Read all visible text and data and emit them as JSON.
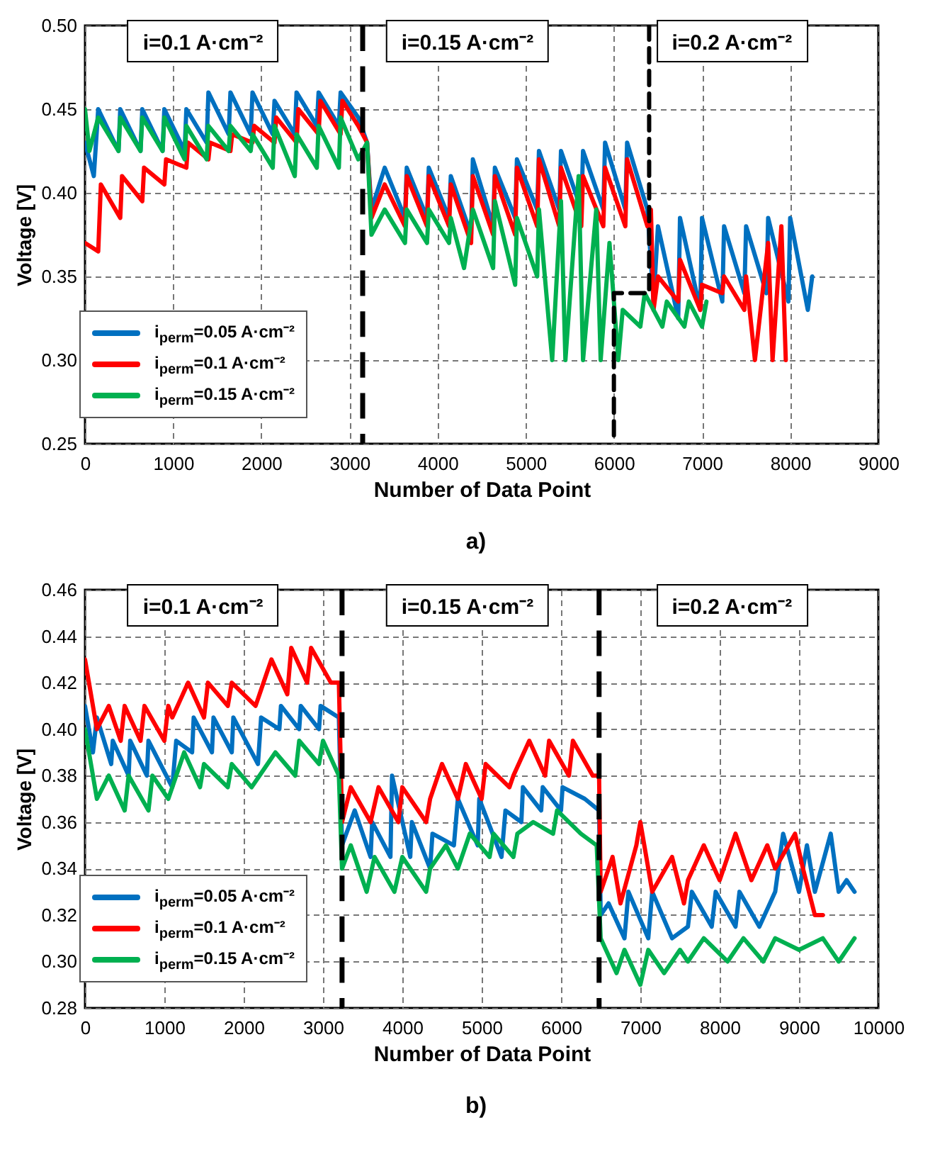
{
  "chart_data": [
    {
      "type": "line",
      "xlabel": "Number of Data Point",
      "ylabel": "Voltage [V]",
      "xlim": [
        0,
        9000
      ],
      "xticks": [
        0,
        1000,
        2000,
        3000,
        4000,
        5000,
        6000,
        7000,
        8000,
        9000
      ],
      "ylim": [
        0.25,
        0.5
      ],
      "yticks": [
        {
          "value": 0.25,
          "label": "0.25"
        },
        {
          "value": 0.3,
          "label": "0.30"
        },
        {
          "value": 0.35,
          "label": "0.35"
        },
        {
          "value": 0.4,
          "label": "0.40"
        },
        {
          "value": 0.45,
          "label": "0.45"
        },
        {
          "value": 0.5,
          "label": "0.50"
        }
      ],
      "grid": true,
      "legend": "bottom left",
      "annotations": [
        "i=0.1 A·cm⁻²",
        "i=0.15 A·cm⁻²",
        "i=0.2 A·cm⁻²",
        "a)"
      ],
      "ref_lines": [
        {
          "axis": "x",
          "value": 3150,
          "color": "#000000",
          "line_style": "dashed"
        }
      ],
      "series": [
        {
          "name": "i$_{perm}$=0.05 A·cm⁻²",
          "color": "#0070c0",
          "x": [
            0,
            100,
            150,
            380,
            400,
            630,
            650,
            880,
            900,
            1130,
            1150,
            1380,
            1400,
            1630,
            1650,
            1880,
            1900,
            2130,
            2150,
            2380,
            2400,
            2630,
            2650,
            2880,
            2900,
            3100,
            3200,
            3250,
            3400,
            3630,
            3650,
            3880,
            3900,
            4130,
            4150,
            4380,
            4400,
            4630,
            4650,
            4880,
            4900,
            5130,
            5150,
            5380,
            5400,
            5630,
            5650,
            5880,
            5900,
            6130,
            6150,
            6380,
            6450,
            6500,
            6730,
            6750,
            6980,
            7000,
            7230,
            7250,
            7480,
            7500,
            7730,
            7750,
            7980,
            8000,
            8200,
            8250
          ],
          "values": [
            0.43,
            0.41,
            0.45,
            0.425,
            0.45,
            0.425,
            0.45,
            0.425,
            0.45,
            0.425,
            0.45,
            0.43,
            0.46,
            0.435,
            0.46,
            0.435,
            0.46,
            0.435,
            0.455,
            0.435,
            0.46,
            0.44,
            0.46,
            0.44,
            0.46,
            0.445,
            0.43,
            0.39,
            0.415,
            0.385,
            0.415,
            0.385,
            0.415,
            0.385,
            0.41,
            0.375,
            0.42,
            0.38,
            0.415,
            0.385,
            0.42,
            0.39,
            0.425,
            0.39,
            0.425,
            0.39,
            0.425,
            0.39,
            0.43,
            0.39,
            0.43,
            0.39,
            0.335,
            0.38,
            0.325,
            0.385,
            0.33,
            0.385,
            0.335,
            0.38,
            0.34,
            0.38,
            0.34,
            0.385,
            0.335,
            0.385,
            0.33,
            0.35
          ]
        },
        {
          "name": "i$_{perm}$=0.1 A·cm⁻²",
          "color": "#ff0000",
          "x": [
            0,
            150,
            180,
            400,
            420,
            650,
            670,
            900,
            920,
            1150,
            1170,
            1400,
            1420,
            1650,
            1670,
            1900,
            1920,
            2150,
            2170,
            2400,
            2420,
            2650,
            2670,
            2900,
            2920,
            3100,
            3200,
            3250,
            3400,
            3630,
            3650,
            3880,
            3900,
            4130,
            4150,
            4380,
            4400,
            4630,
            4650,
            4880,
            4900,
            5130,
            5150,
            5380,
            5400,
            5630,
            5650,
            5880,
            5900,
            6130,
            6150,
            6380,
            6420,
            6450,
            6500,
            6730,
            6750,
            6980,
            7000,
            7230,
            7250,
            7480,
            7500,
            7600,
            7750,
            7800,
            7900,
            7950
          ],
          "values": [
            0.37,
            0.365,
            0.405,
            0.385,
            0.41,
            0.395,
            0.415,
            0.405,
            0.42,
            0.415,
            0.43,
            0.42,
            0.43,
            0.425,
            0.435,
            0.43,
            0.44,
            0.43,
            0.445,
            0.43,
            0.45,
            0.435,
            0.455,
            0.435,
            0.455,
            0.44,
            0.43,
            0.385,
            0.405,
            0.38,
            0.41,
            0.38,
            0.41,
            0.38,
            0.405,
            0.37,
            0.41,
            0.375,
            0.41,
            0.375,
            0.415,
            0.38,
            0.42,
            0.38,
            0.415,
            0.38,
            0.41,
            0.38,
            0.415,
            0.38,
            0.42,
            0.38,
            0.39,
            0.33,
            0.35,
            0.335,
            0.36,
            0.33,
            0.345,
            0.34,
            0.35,
            0.33,
            0.35,
            0.3,
            0.37,
            0.3,
            0.38,
            0.3
          ]
        },
        {
          "name": "i$_{perm}$=0.15 A·cm⁻²",
          "color": "#00b050",
          "x": [
            0,
            50,
            150,
            380,
            400,
            630,
            650,
            880,
            900,
            1130,
            1150,
            1380,
            1400,
            1630,
            1650,
            1880,
            1900,
            2130,
            2150,
            2380,
            2400,
            2630,
            2650,
            2880,
            2900,
            3100,
            3200,
            3250,
            3400,
            3630,
            3650,
            3880,
            3900,
            4130,
            4150,
            4300,
            4400,
            4630,
            4650,
            4880,
            4900,
            5130,
            5150,
            5300,
            5400,
            5450,
            5600,
            5650,
            5800,
            5850,
            5950,
            6050,
            6100,
            6300,
            6350,
            6550,
            6600,
            6800,
            6850,
            7000,
            7050
          ],
          "values": [
            0.45,
            0.425,
            0.445,
            0.425,
            0.445,
            0.425,
            0.445,
            0.425,
            0.445,
            0.42,
            0.44,
            0.42,
            0.44,
            0.425,
            0.44,
            0.425,
            0.435,
            0.415,
            0.44,
            0.41,
            0.435,
            0.415,
            0.44,
            0.415,
            0.445,
            0.42,
            0.43,
            0.375,
            0.39,
            0.37,
            0.39,
            0.37,
            0.39,
            0.37,
            0.385,
            0.355,
            0.39,
            0.355,
            0.395,
            0.345,
            0.385,
            0.35,
            0.39,
            0.3,
            0.395,
            0.3,
            0.41,
            0.3,
            0.39,
            0.3,
            0.37,
            0.3,
            0.33,
            0.32,
            0.34,
            0.32,
            0.335,
            0.32,
            0.335,
            0.32,
            0.335
          ]
        },
        {
          "color": "#000000",
          "line_style": "dashed",
          "x": [
            6400,
            6400,
            6000,
            6000
          ],
          "values": [
            0.5,
            0.34,
            0.34,
            0.25
          ]
        }
      ]
    },
    {
      "type": "line",
      "xlabel": "Number of Data Point",
      "ylabel": "Voltage [V]",
      "xlim": [
        0,
        10000
      ],
      "xticks": [
        0,
        1000,
        2000,
        3000,
        4000,
        5000,
        6000,
        7000,
        8000,
        9000,
        10000
      ],
      "ylim": [
        0.28,
        0.46
      ],
      "yticks": [
        0.28,
        {
          "value": 0.3,
          "label": "0.30"
        },
        0.32,
        0.34,
        0.36,
        0.38,
        {
          "value": 0.4,
          "label": "0.40"
        },
        0.42,
        0.44,
        0.46
      ],
      "grid": true,
      "legend": "bottom left",
      "annotations": [
        "i=0.1 A·cm⁻²",
        "i=0.15 A·cm⁻²",
        "i=0.2 A·cm⁻²",
        "b)"
      ],
      "ref_lines": [
        {
          "axis": "x",
          "value": 3240,
          "color": "#000000",
          "line_style": "dashed"
        },
        {
          "axis": "x",
          "value": 6480,
          "color": "#000000",
          "line_style": "dashed"
        }
      ],
      "series": [
        {
          "name": "i$_{perm}$=0.05 A·cm⁻²",
          "color": "#0070c0",
          "x": [
            0,
            100,
            150,
            330,
            350,
            550,
            570,
            780,
            800,
            1100,
            1150,
            1350,
            1370,
            1600,
            1620,
            1850,
            1870,
            2180,
            2220,
            2450,
            2470,
            2700,
            2720,
            2950,
            2970,
            3200,
            3240,
            3400,
            3600,
            3620,
            3850,
            3870,
            4100,
            4120,
            4350,
            4380,
            4650,
            4700,
            4950,
            4970,
            5250,
            5300,
            5500,
            5520,
            5750,
            5770,
            6000,
            6020,
            6300,
            6480,
            6500,
            6600,
            6800,
            6850,
            7100,
            7150,
            7400,
            7600,
            7650,
            7900,
            7950,
            8200,
            8250,
            8500,
            8700,
            8800,
            9000,
            9100,
            9200,
            9400,
            9500,
            9600,
            9700
          ],
          "values": [
            0.41,
            0.39,
            0.405,
            0.385,
            0.395,
            0.38,
            0.395,
            0.38,
            0.395,
            0.375,
            0.395,
            0.39,
            0.405,
            0.39,
            0.405,
            0.39,
            0.405,
            0.385,
            0.405,
            0.4,
            0.41,
            0.4,
            0.41,
            0.4,
            0.41,
            0.405,
            0.35,
            0.365,
            0.345,
            0.36,
            0.345,
            0.38,
            0.345,
            0.36,
            0.34,
            0.355,
            0.35,
            0.37,
            0.35,
            0.37,
            0.345,
            0.365,
            0.36,
            0.375,
            0.365,
            0.375,
            0.365,
            0.375,
            0.37,
            0.365,
            0.32,
            0.325,
            0.31,
            0.33,
            0.31,
            0.33,
            0.31,
            0.315,
            0.33,
            0.315,
            0.33,
            0.315,
            0.33,
            0.315,
            0.33,
            0.355,
            0.33,
            0.35,
            0.33,
            0.355,
            0.33,
            0.335,
            0.33
          ]
        },
        {
          "name": "i$_{perm}$=0.1 A·cm⁻²",
          "color": "#ff0000",
          "x": [
            0,
            150,
            300,
            450,
            500,
            700,
            750,
            1000,
            1050,
            1100,
            1300,
            1500,
            1550,
            1800,
            1850,
            2150,
            2200,
            2350,
            2550,
            2600,
            2800,
            2850,
            3100,
            3200,
            3240,
            3350,
            3600,
            3700,
            3950,
            4000,
            4300,
            4350,
            4500,
            4700,
            4800,
            5000,
            5050,
            5350,
            5400,
            5600,
            5800,
            5850,
            6100,
            6150,
            6400,
            6480,
            6500,
            6650,
            6750,
            6950,
            7000,
            7150,
            7400,
            7550,
            7600,
            7800,
            8000,
            8200,
            8400,
            8600,
            8700,
            8950,
            9050,
            9200,
            9300
          ],
          "values": [
            0.43,
            0.4,
            0.41,
            0.395,
            0.41,
            0.395,
            0.41,
            0.395,
            0.41,
            0.405,
            0.42,
            0.405,
            0.42,
            0.41,
            0.42,
            0.41,
            0.415,
            0.43,
            0.415,
            0.435,
            0.42,
            0.435,
            0.42,
            0.42,
            0.36,
            0.375,
            0.36,
            0.375,
            0.36,
            0.375,
            0.36,
            0.37,
            0.385,
            0.37,
            0.385,
            0.37,
            0.385,
            0.375,
            0.38,
            0.395,
            0.38,
            0.395,
            0.38,
            0.395,
            0.38,
            0.38,
            0.33,
            0.345,
            0.325,
            0.35,
            0.36,
            0.33,
            0.345,
            0.325,
            0.335,
            0.35,
            0.335,
            0.355,
            0.335,
            0.35,
            0.34,
            0.355,
            0.34,
            0.32,
            0.32
          ]
        },
        {
          "name": "i$_{perm}$=0.15 A·cm⁻²",
          "color": "#00b050",
          "x": [
            0,
            150,
            300,
            500,
            550,
            800,
            850,
            1050,
            1150,
            1250,
            1450,
            1500,
            1800,
            1850,
            2100,
            2200,
            2400,
            2650,
            2700,
            2950,
            3000,
            3200,
            3240,
            3350,
            3550,
            3650,
            3900,
            4000,
            4300,
            4350,
            4550,
            4700,
            4850,
            5100,
            5150,
            5400,
            5450,
            5650,
            5900,
            5950,
            6250,
            6450,
            6500,
            6700,
            6800,
            7000,
            7100,
            7300,
            7500,
            7600,
            7800,
            8100,
            8300,
            8550,
            8700,
            9000,
            9300,
            9500,
            9700
          ],
          "values": [
            0.4,
            0.37,
            0.38,
            0.365,
            0.38,
            0.365,
            0.38,
            0.37,
            0.38,
            0.39,
            0.375,
            0.385,
            0.375,
            0.385,
            0.375,
            0.38,
            0.39,
            0.38,
            0.395,
            0.385,
            0.395,
            0.38,
            0.34,
            0.35,
            0.33,
            0.345,
            0.33,
            0.345,
            0.33,
            0.34,
            0.35,
            0.34,
            0.355,
            0.345,
            0.355,
            0.345,
            0.355,
            0.36,
            0.355,
            0.365,
            0.355,
            0.35,
            0.31,
            0.295,
            0.305,
            0.29,
            0.305,
            0.295,
            0.305,
            0.3,
            0.31,
            0.3,
            0.31,
            0.3,
            0.31,
            0.305,
            0.31,
            0.3,
            0.31
          ]
        }
      ]
    }
  ]
}
